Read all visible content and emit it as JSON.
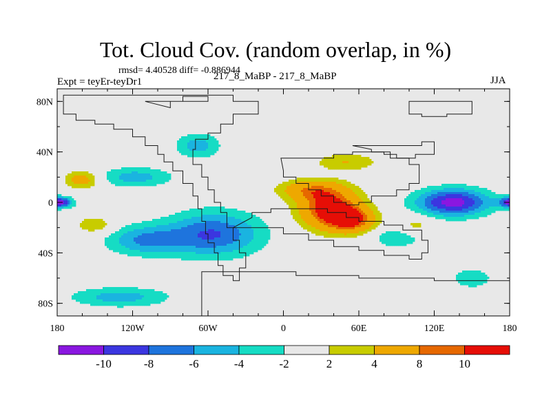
{
  "title": "Tot. Cloud Cov. (random overlap, in %)",
  "stats_line": "rmsd= 4.40528 diff= -0.886944",
  "left_subtitle": "Expt = teyEr-teyDr1",
  "center_subtitle": "217_8_MaBP - 217_8_MaBP",
  "right_subtitle": "JJA",
  "chart_data": {
    "type": "heatmap",
    "title": "Tot. Cloud Cov. (random overlap, in %)",
    "xlabel": "",
    "ylabel": "",
    "xlim": [
      -180,
      180
    ],
    "ylim": [
      -90,
      90
    ],
    "x_ticks": [
      {
        "value": -180,
        "label": "180"
      },
      {
        "value": -120,
        "label": "120W"
      },
      {
        "value": -60,
        "label": "60W"
      },
      {
        "value": 0,
        "label": "0"
      },
      {
        "value": 60,
        "label": "60E"
      },
      {
        "value": 120,
        "label": "120E"
      },
      {
        "value": 180,
        "label": "180"
      }
    ],
    "y_ticks": [
      {
        "value": 80,
        "label": "80N"
      },
      {
        "value": 40,
        "label": "40N"
      },
      {
        "value": 0,
        "label": "0"
      },
      {
        "value": -40,
        "label": "40S"
      },
      {
        "value": -80,
        "label": "80S"
      }
    ],
    "levels": [
      -10,
      -8,
      -6,
      -4,
      -2,
      2,
      4,
      8,
      10
    ],
    "level_labels": [
      "-10",
      "-8",
      "-6",
      "-4",
      "-2",
      "2",
      "4",
      "8",
      "10"
    ],
    "colors": [
      "#8a17e0",
      "#3b36e0",
      "#1e74dd",
      "#1ab4e0",
      "#16dcc4",
      "#e8e8e8",
      "#c8cc00",
      "#eea800",
      "#e66800",
      "#e60e06"
    ],
    "anomaly_regions": [
      {
        "name": "north-africa-cloud-increase",
        "lon": 37,
        "lat": -5,
        "rlon": 24,
        "rlat": 16,
        "value": 12
      },
      {
        "name": "arabian-sea-cloud-increase",
        "lon": 55,
        "lat": -14,
        "rlon": 18,
        "rlat": 10,
        "value": 9
      },
      {
        "name": "west-pacific-cloud-decrease",
        "lon": 135,
        "lat": 0,
        "rlon": 30,
        "rlat": 11,
        "value": -11
      },
      {
        "name": "dateline-equator-decrease",
        "lon": -178,
        "lat": 0,
        "rlon": 10,
        "rlat": 4,
        "value": -11
      },
      {
        "name": "south-atlantic-decrease",
        "lon": -55,
        "lat": -25,
        "rlon": 38,
        "rlat": 18,
        "value": -8
      },
      {
        "name": "south-pacific-decrease",
        "lon": -110,
        "lat": -30,
        "rlon": 32,
        "rlat": 12,
        "value": -6
      },
      {
        "name": "north-pacific-decrease",
        "lon": -118,
        "lat": 20,
        "rlon": 30,
        "rlat": 8,
        "value": -5
      },
      {
        "name": "southern-ocean-decrease",
        "lon": -130,
        "lat": -75,
        "rlon": 40,
        "rlat": 8,
        "value": -5
      },
      {
        "name": "indian-ocean-decrease",
        "lon": 90,
        "lat": -28,
        "rlon": 20,
        "rlat": 8,
        "value": -4
      },
      {
        "name": "north-america-decrease",
        "lon": -68,
        "lat": 45,
        "rlon": 18,
        "rlat": 10,
        "value": -5
      },
      {
        "name": "sahel-increase",
        "lon": 20,
        "lat": 10,
        "rlon": 25,
        "rlat": 8,
        "value": 6
      },
      {
        "name": "europe-increase",
        "lon": 50,
        "lat": 32,
        "rlon": 25,
        "rlat": 7,
        "value": 4
      },
      {
        "name": "east-pacific-increase",
        "lon": -160,
        "lat": 18,
        "rlon": 14,
        "rlat": 7,
        "value": 6
      },
      {
        "name": "south-pacific-increase",
        "lon": -150,
        "lat": -18,
        "rlon": 15,
        "rlat": 7,
        "value": 4
      },
      {
        "name": "indonesia-increase",
        "lon": 105,
        "lat": -18,
        "rlon": 14,
        "rlat": 8,
        "value": 3
      },
      {
        "name": "southeast-pacific-decrease",
        "lon": 150,
        "lat": -60,
        "rlon": 20,
        "rlat": 10,
        "value": -3
      }
    ]
  }
}
